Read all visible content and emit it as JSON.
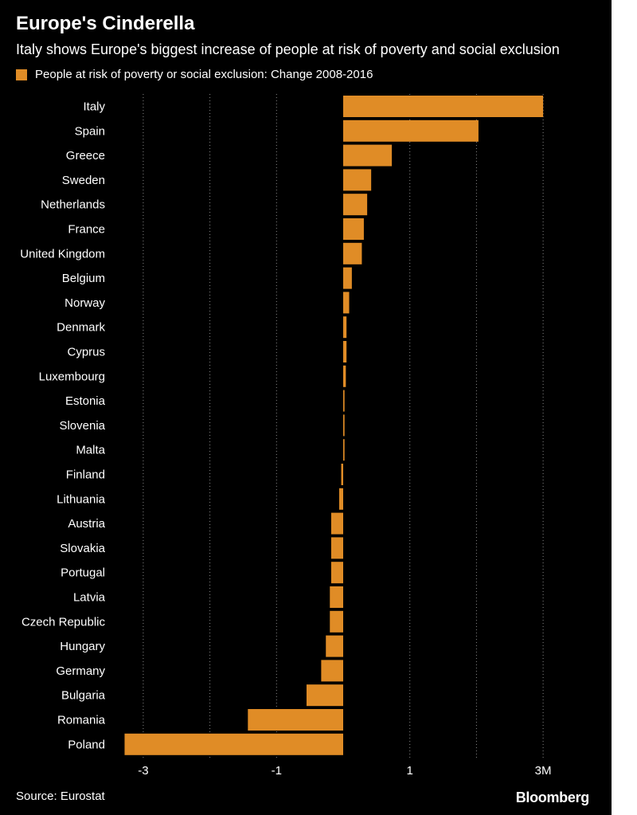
{
  "title": "Europe's Cinderella",
  "subtitle": "Italy shows Europe's biggest increase of people at risk of poverty and social exclusion",
  "source": "Source: Eurostat",
  "brand": "Bloomberg",
  "colors": {
    "background": "#000000",
    "bar": "#e08c26",
    "text": "#ffffff",
    "grid": "#8a8a8a"
  },
  "chart_data": {
    "type": "bar",
    "orientation": "horizontal",
    "legend": [
      "People at risk of poverty or social exclusion: Change 2008-2016"
    ],
    "unit": "millions of people",
    "categories": [
      "Italy",
      "Spain",
      "Greece",
      "Sweden",
      "Netherlands",
      "France",
      "United Kingdom",
      "Belgium",
      "Norway",
      "Denmark",
      "Cyprus",
      "Luxembourg",
      "Estonia",
      "Slovenia",
      "Malta",
      "Finland",
      "Lithuania",
      "Austria",
      "Slovakia",
      "Portugal",
      "Latvia",
      "Czech Republic",
      "Hungary",
      "Germany",
      "Bulgaria",
      "Romania",
      "Poland"
    ],
    "values": [
      3.0,
      2.03,
      0.73,
      0.42,
      0.36,
      0.31,
      0.28,
      0.13,
      0.09,
      0.05,
      0.05,
      0.04,
      0.02,
      0.02,
      0.02,
      -0.03,
      -0.06,
      -0.18,
      -0.18,
      -0.18,
      -0.2,
      -0.2,
      -0.26,
      -0.33,
      -0.55,
      -1.43,
      -3.28
    ],
    "xlim": [
      -3.3,
      3.0
    ],
    "xticks": [
      -3,
      -2,
      -1,
      0,
      1,
      2,
      3
    ],
    "xtick_labels": [
      "-3",
      "",
      "-1",
      "",
      "1",
      "",
      "3M"
    ],
    "grid": true,
    "legend_position": "top-left"
  }
}
